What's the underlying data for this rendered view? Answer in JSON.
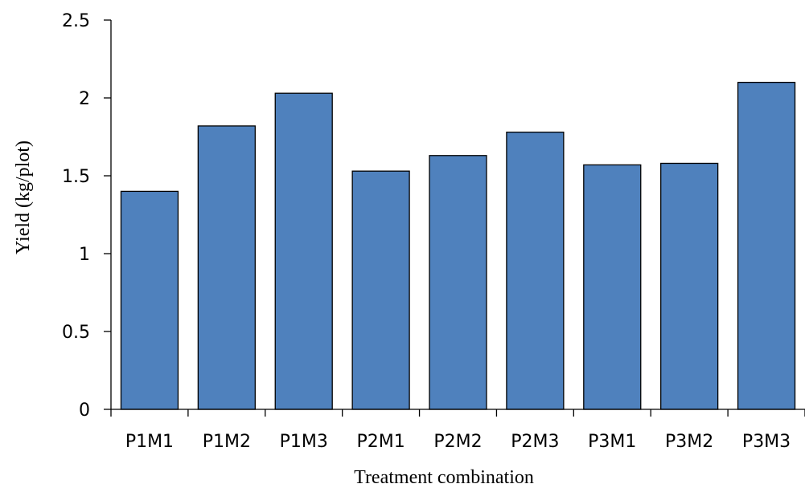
{
  "chart_data": {
    "type": "bar",
    "categories": [
      "P1M1",
      "P1M2",
      "P1M3",
      "P2M1",
      "P2M2",
      "P2M3",
      "P3M1",
      "P3M2",
      "P3M3"
    ],
    "values": [
      1.4,
      1.82,
      2.03,
      1.53,
      1.63,
      1.78,
      1.57,
      1.58,
      2.1
    ],
    "title": "",
    "xlabel": "Treatment combination",
    "ylabel": "Yield (kg/plot)",
    "ylim": [
      0,
      2.5
    ],
    "yticks": [
      "0",
      "0.5",
      "1",
      "1.5",
      "2",
      "2.5"
    ],
    "grid": false,
    "bar_color": "#4f81bd"
  }
}
